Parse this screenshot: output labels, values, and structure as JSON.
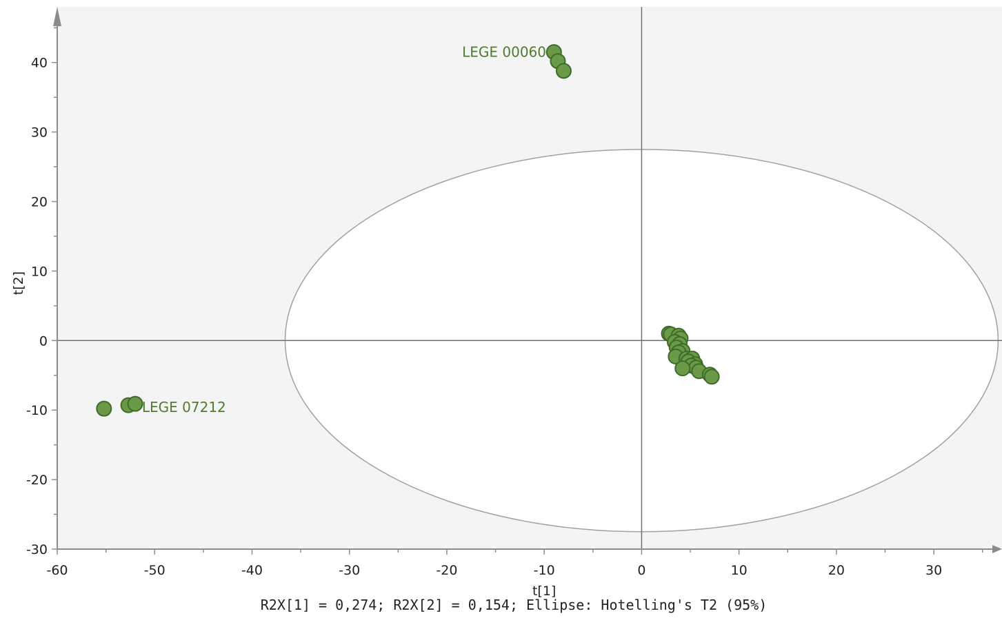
{
  "chart_data": {
    "type": "scatter",
    "title": "",
    "xlabel": "t[1]",
    "ylabel": "t[2]",
    "xlim": [
      -60,
      37
    ],
    "ylim": [
      -30,
      48
    ],
    "x_ticks": [
      -60,
      -50,
      -40,
      -30,
      -20,
      -10,
      0,
      10,
      20,
      30
    ],
    "y_ticks": [
      -30,
      -20,
      -10,
      0,
      10,
      20,
      30,
      40
    ],
    "grid": false,
    "ellipse": {
      "center": [
        0,
        0
      ],
      "semi_x": 36.6,
      "semi_y": 27.5,
      "label": "Hotelling's T2 (95%)"
    },
    "series": [
      {
        "color": "#6a9a48",
        "points": [
          {
            "x": -9.0,
            "y": 41.5
          },
          {
            "x": -8.6,
            "y": 40.2
          },
          {
            "x": -8.0,
            "y": 38.8
          },
          {
            "x": -55.2,
            "y": -9.8
          },
          {
            "x": -52.7,
            "y": -9.3
          },
          {
            "x": -52.0,
            "y": -9.1
          },
          {
            "x": 2.8,
            "y": 1.0
          },
          {
            "x": 3.0,
            "y": 0.9
          },
          {
            "x": 3.8,
            "y": 0.7
          },
          {
            "x": 4.0,
            "y": 0.3
          },
          {
            "x": 3.4,
            "y": -0.2
          },
          {
            "x": 3.9,
            "y": -0.5
          },
          {
            "x": 3.6,
            "y": -1.0
          },
          {
            "x": 4.2,
            "y": -1.5
          },
          {
            "x": 3.8,
            "y": -1.7
          },
          {
            "x": 3.5,
            "y": -2.3
          },
          {
            "x": 4.6,
            "y": -2.6
          },
          {
            "x": 5.2,
            "y": -2.6
          },
          {
            "x": 4.8,
            "y": -3.0
          },
          {
            "x": 5.5,
            "y": -3.4
          },
          {
            "x": 5.1,
            "y": -3.6
          },
          {
            "x": 5.6,
            "y": -3.9
          },
          {
            "x": 4.2,
            "y": -4.0
          },
          {
            "x": 5.9,
            "y": -4.4
          },
          {
            "x": 7.0,
            "y": -4.9
          },
          {
            "x": 7.2,
            "y": -5.2
          }
        ]
      }
    ],
    "annotations": [
      {
        "text": "LEGE 00060",
        "x": -9.8,
        "y": 41.5,
        "anchor": "end"
      },
      {
        "text": "LEGE 07212",
        "x": -51.3,
        "y": -9.6,
        "anchor": "start"
      }
    ],
    "label_color": "#4f7b2f",
    "axis_color": "#8c8c8c",
    "ellipse_color": "#a0a0a0",
    "plot_bg": "#f4f4f4",
    "footnote": "R2X[1] = 0,274; R2X[2] = 0,154; Ellipse: Hotelling's T2 (95%)"
  }
}
